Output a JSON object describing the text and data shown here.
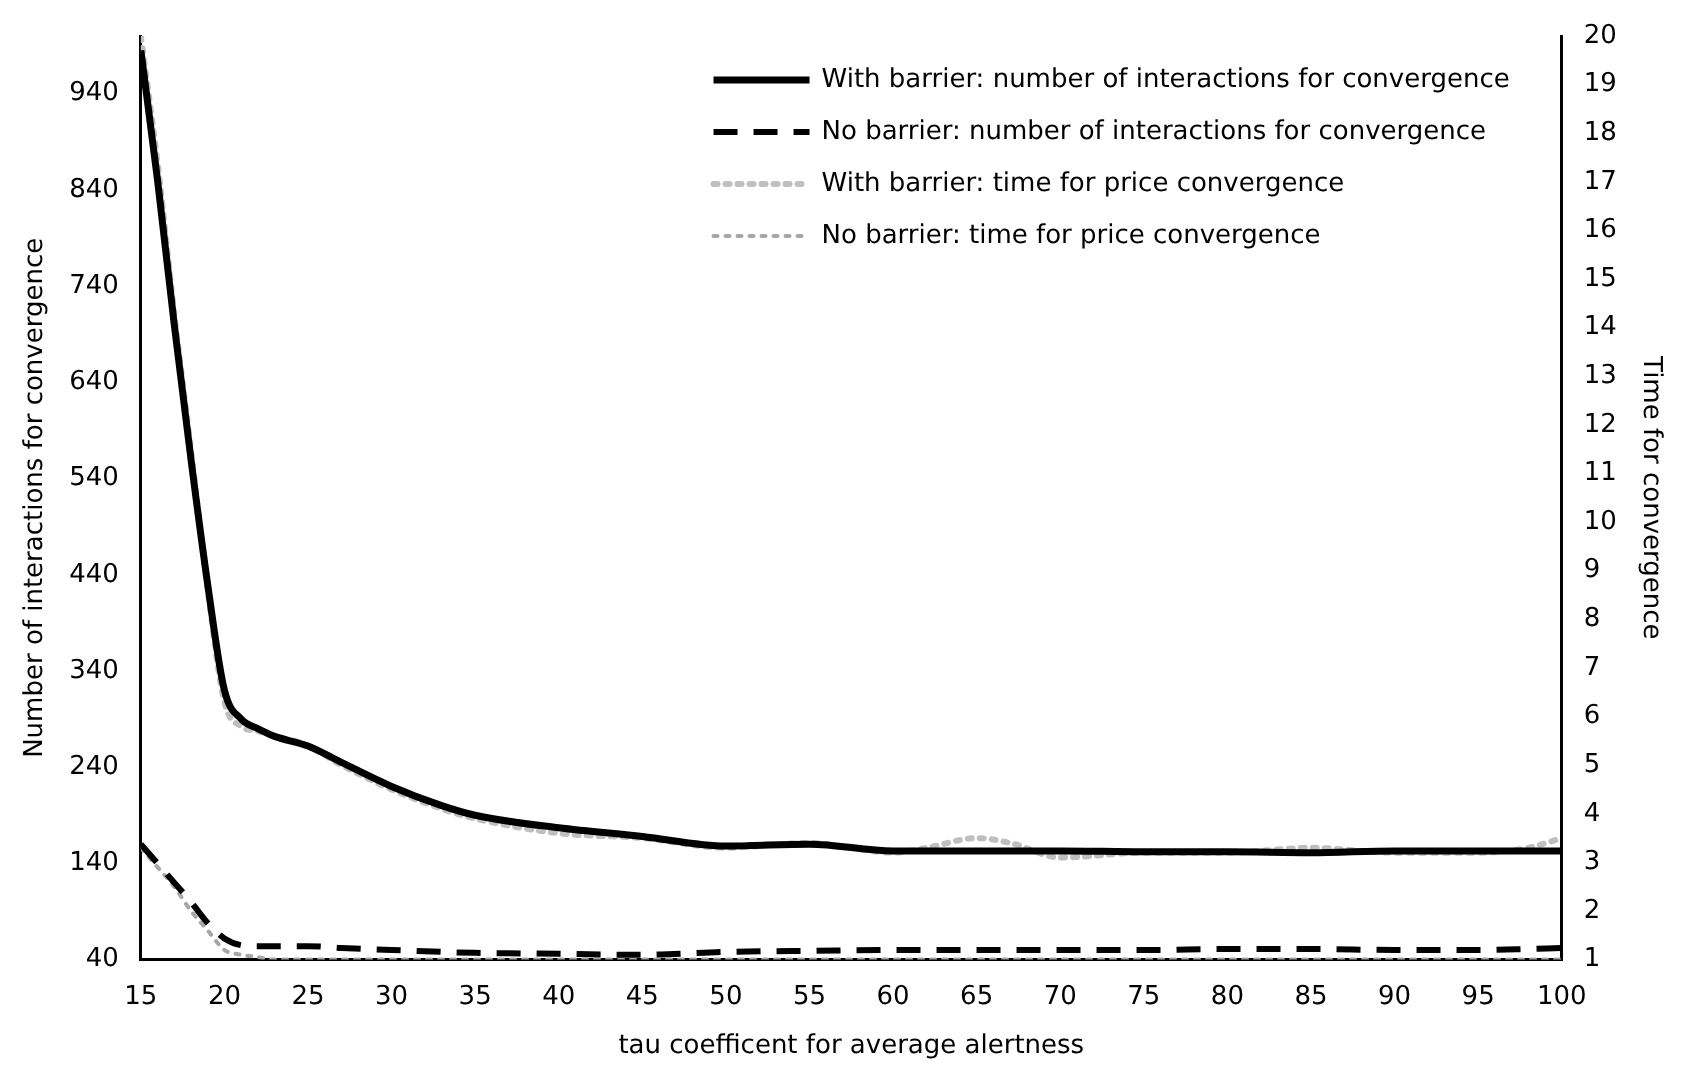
{
  "chart_data": {
    "type": "line",
    "xlabel": "tau coefficent for average alertness",
    "ylabel": "Number of interactions for convergence",
    "y2label": "Time for convergence",
    "x": [
      15,
      16,
      17,
      18,
      19,
      20,
      21,
      22,
      23,
      25,
      27,
      30,
      33,
      35,
      40,
      45,
      50,
      55,
      60,
      62,
      65,
      67,
      70,
      75,
      80,
      85,
      90,
      95,
      98,
      100
    ],
    "xlim": [
      15,
      100
    ],
    "xticks": [
      15,
      20,
      25,
      30,
      35,
      40,
      45,
      50,
      55,
      60,
      65,
      70,
      75,
      80,
      85,
      90,
      95,
      100
    ],
    "ylim": [
      40,
      1000
    ],
    "yticks": [
      40,
      140,
      240,
      340,
      440,
      540,
      640,
      740,
      840,
      940
    ],
    "y2lim": [
      1,
      20
    ],
    "y2ticks": [
      1,
      2,
      3,
      4,
      5,
      6,
      7,
      8,
      9,
      10,
      11,
      12,
      13,
      14,
      15,
      16,
      17,
      18,
      19,
      20
    ],
    "grid": false,
    "legend": "top right",
    "marker": "none",
    "series": [
      {
        "name": "With barrier: number of interactions for convergence",
        "color": "#000000",
        "line_style": "solid",
        "values": [
          985,
          850,
          700,
          560,
          430,
          320,
          290,
          280,
          272,
          262,
          245,
          220,
          200,
          190,
          177,
          168,
          158,
          160,
          153,
          153,
          153,
          153,
          153,
          152,
          152,
          151,
          153,
          153,
          153,
          153
        ]
      },
      {
        "name": "No barrier: number of interactions for convergence",
        "color": "#000000",
        "line_style": "dashed",
        "values": [
          160,
          140,
          120,
          100,
          78,
          62,
          55,
          54,
          54,
          54,
          52,
          50,
          48,
          47,
          46,
          45,
          48,
          49,
          50,
          50,
          50,
          50,
          50,
          50,
          51,
          51,
          50,
          50,
          51,
          52
        ]
      },
      {
        "name": "With barrier: time for price convergence",
        "color": "#bfbfbf",
        "line_style": "dotted",
        "axis": "y2",
        "values": [
          20,
          17.4,
          14.3,
          11.5,
          8.6,
          6.3,
          5.8,
          5.7,
          5.6,
          5.4,
          5.0,
          4.5,
          4.1,
          3.9,
          3.6,
          3.5,
          3.3,
          3.4,
          3.2,
          3.3,
          3.5,
          3.4,
          3.1,
          3.2,
          3.2,
          3.3,
          3.2,
          3.2,
          3.3,
          3.5
        ]
      },
      {
        "name": "No barrier: time for price convergence",
        "color": "#a6a6a6",
        "line_style": "dotted",
        "axis": "y2",
        "values": [
          3.3,
          2.9,
          2.5,
          2.0,
          1.6,
          1.2,
          1.1,
          1.05,
          1.0,
          1.0,
          1.0,
          1.0,
          1.0,
          1.0,
          1.0,
          1.0,
          1.0,
          1.0,
          1.0,
          1.0,
          1.0,
          1.0,
          1.0,
          1.0,
          1.0,
          1.0,
          1.0,
          1.0,
          1.0,
          1.0
        ]
      }
    ]
  }
}
